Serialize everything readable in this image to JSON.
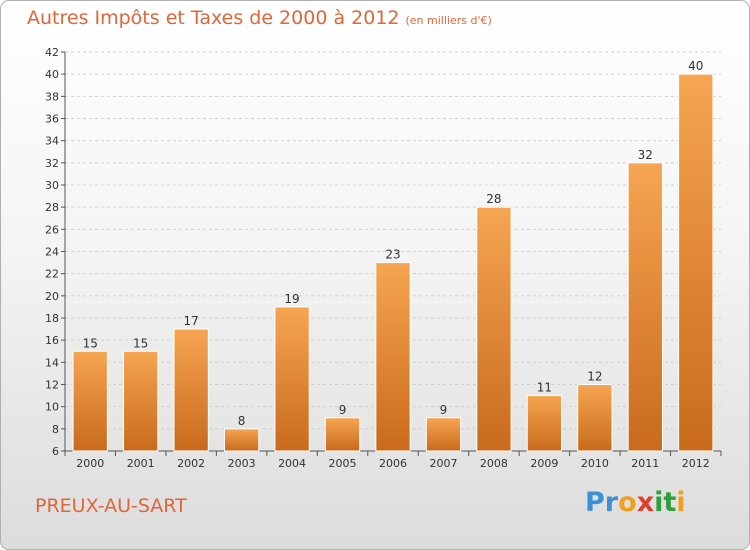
{
  "title": "Autres Impôts et Taxes de 2000 à 2012",
  "subtitle": "(en milliers d'€)",
  "commune": "PREUX-AU-SART",
  "logo": {
    "letters": [
      "P",
      "r",
      "o",
      "x",
      "i",
      "t",
      "i"
    ],
    "colors": [
      "#3d8fd6",
      "#3d8fd6",
      "#f0a020",
      "#e23c2e",
      "#2f9e3c",
      "#2f9e3c",
      "#f0a020"
    ]
  },
  "colors": {
    "bar_top": "#f6a552",
    "bar_bottom": "#c96a1c",
    "title": "#e0663a"
  },
  "chart_data": {
    "type": "bar",
    "categories": [
      "2000",
      "2001",
      "2002",
      "2003",
      "2004",
      "2005",
      "2006",
      "2007",
      "2008",
      "2009",
      "2010",
      "2011",
      "2012"
    ],
    "values": [
      15,
      15,
      17,
      8,
      19,
      9,
      23,
      9,
      28,
      11,
      12,
      32,
      40
    ],
    "ylim": [
      6,
      42
    ],
    "yticks": [
      6,
      8,
      10,
      12,
      14,
      16,
      18,
      20,
      22,
      24,
      26,
      28,
      30,
      32,
      34,
      36,
      38,
      40,
      42
    ],
    "grid": true,
    "xlabel": "",
    "ylabel": ""
  }
}
